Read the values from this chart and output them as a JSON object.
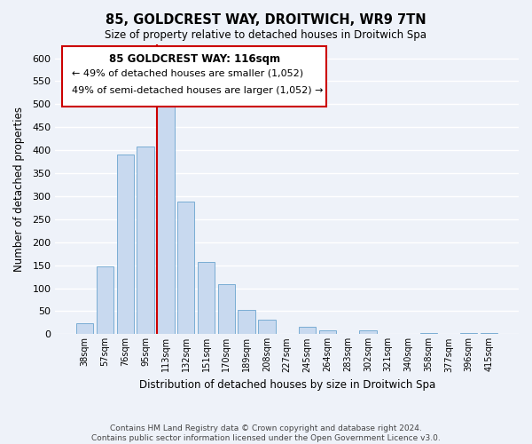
{
  "title": "85, GOLDCREST WAY, DROITWICH, WR9 7TN",
  "subtitle": "Size of property relative to detached houses in Droitwich Spa",
  "xlabel": "Distribution of detached houses by size in Droitwich Spa",
  "ylabel": "Number of detached properties",
  "bar_labels": [
    "38sqm",
    "57sqm",
    "76sqm",
    "95sqm",
    "113sqm",
    "132sqm",
    "151sqm",
    "170sqm",
    "189sqm",
    "208sqm",
    "227sqm",
    "245sqm",
    "264sqm",
    "283sqm",
    "302sqm",
    "321sqm",
    "340sqm",
    "358sqm",
    "377sqm",
    "396sqm",
    "415sqm"
  ],
  "bar_values": [
    23,
    148,
    390,
    408,
    500,
    288,
    157,
    109,
    53,
    32,
    0,
    16,
    9,
    0,
    8,
    0,
    0,
    2,
    0,
    3,
    2
  ],
  "bar_color": "#c8d9ef",
  "bar_edge_color": "#7aadd4",
  "ylim": [
    0,
    630
  ],
  "yticks": [
    0,
    50,
    100,
    150,
    200,
    250,
    300,
    350,
    400,
    450,
    500,
    550,
    600
  ],
  "property_line_index": 4,
  "property_line_color": "#cc0000",
  "annotation_title": "85 GOLDCREST WAY: 116sqm",
  "annotation_line1": "← 49% of detached houses are smaller (1,052)",
  "annotation_line2": "49% of semi-detached houses are larger (1,052) →",
  "footer_line1": "Contains HM Land Registry data © Crown copyright and database right 2024.",
  "footer_line2": "Contains public sector information licensed under the Open Government Licence v3.0.",
  "background_color": "#eef2f9",
  "plot_bg_color": "#eef2f9"
}
